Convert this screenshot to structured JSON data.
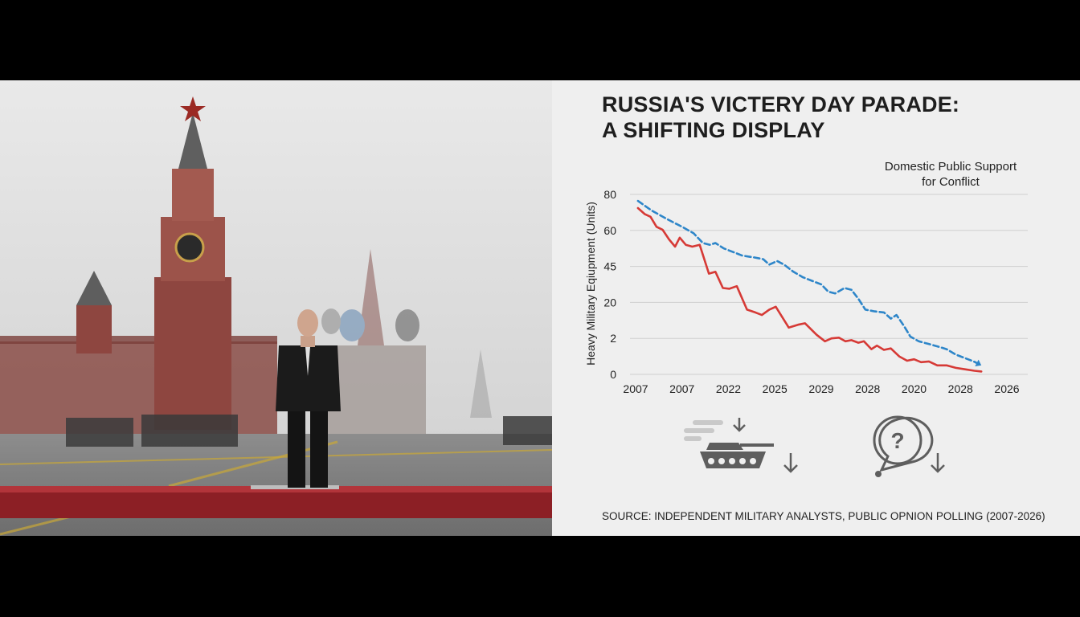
{
  "headline": {
    "line1": "RUSSIA'S VICTERY DAY PARADE:",
    "line2": "A SHIFTING DISPLAY"
  },
  "source": "SOURCE: INDEPENDENT MILITARY ANALYSTS, PUBLIC OPNION POLLING (2007-2026)",
  "icons": {
    "tank": "tank-icon",
    "question": "question-bubble-icon",
    "arrow": "arrow-down-icon"
  },
  "colors": {
    "red_series": "#d63a36",
    "blue_series": "#2e86c9",
    "panel_bg": "#efefef"
  },
  "chart_data": {
    "type": "line",
    "title": "",
    "legend_label": "Domestic Public Support for Conflict",
    "legend_lines": [
      "Domestic Public Support",
      "for Conflict"
    ],
    "ylabel": "Heavy Military Eqiupment (Units)",
    "xlabel": "",
    "x_tick_labels": [
      "2007",
      "2007",
      "2022",
      "2025",
      "2029",
      "2028",
      "2020",
      "2028",
      "2026"
    ],
    "y_tick_labels": [
      "80",
      "60",
      "45",
      "20",
      "2",
      "0"
    ],
    "ylim": [
      0,
      5
    ],
    "grid": true,
    "x_range": [
      0,
      8
    ],
    "series": [
      {
        "name": "",
        "color": "#d63a36",
        "style": "solid",
        "points": [
          [
            0.05,
            4.62
          ],
          [
            0.2,
            4.45
          ],
          [
            0.32,
            4.38
          ],
          [
            0.45,
            4.1
          ],
          [
            0.58,
            4.02
          ],
          [
            0.72,
            3.75
          ],
          [
            0.85,
            3.55
          ],
          [
            0.95,
            3.8
          ],
          [
            1.08,
            3.6
          ],
          [
            1.22,
            3.55
          ],
          [
            1.38,
            3.6
          ],
          [
            1.58,
            2.8
          ],
          [
            1.72,
            2.85
          ],
          [
            1.88,
            2.4
          ],
          [
            2.02,
            2.38
          ],
          [
            2.18,
            2.45
          ],
          [
            2.4,
            1.8
          ],
          [
            2.58,
            1.72
          ],
          [
            2.72,
            1.65
          ],
          [
            2.88,
            1.8
          ],
          [
            3.02,
            1.88
          ],
          [
            3.3,
            1.3
          ],
          [
            3.5,
            1.38
          ],
          [
            3.65,
            1.42
          ],
          [
            3.9,
            1.1
          ],
          [
            4.08,
            0.92
          ],
          [
            4.22,
            1.0
          ],
          [
            4.38,
            1.02
          ],
          [
            4.52,
            0.92
          ],
          [
            4.65,
            0.95
          ],
          [
            4.8,
            0.88
          ],
          [
            4.92,
            0.92
          ],
          [
            5.08,
            0.7
          ],
          [
            5.2,
            0.8
          ],
          [
            5.35,
            0.68
          ],
          [
            5.5,
            0.72
          ],
          [
            5.68,
            0.5
          ],
          [
            5.85,
            0.38
          ],
          [
            6.0,
            0.42
          ],
          [
            6.15,
            0.34
          ],
          [
            6.32,
            0.36
          ],
          [
            6.5,
            0.25
          ],
          [
            6.7,
            0.25
          ],
          [
            6.9,
            0.18
          ],
          [
            7.1,
            0.14
          ],
          [
            7.3,
            0.1
          ],
          [
            7.45,
            0.08
          ]
        ]
      },
      {
        "name": "Domestic Public Support for Conflict",
        "color": "#2e86c9",
        "style": "dashed",
        "points": [
          [
            0.05,
            4.82
          ],
          [
            0.35,
            4.55
          ],
          [
            0.7,
            4.3
          ],
          [
            1.0,
            4.1
          ],
          [
            1.25,
            3.92
          ],
          [
            1.45,
            3.65
          ],
          [
            1.6,
            3.6
          ],
          [
            1.72,
            3.65
          ],
          [
            1.9,
            3.5
          ],
          [
            2.1,
            3.4
          ],
          [
            2.3,
            3.3
          ],
          [
            2.55,
            3.25
          ],
          [
            2.75,
            3.2
          ],
          [
            2.88,
            3.05
          ],
          [
            3.05,
            3.15
          ],
          [
            3.2,
            3.05
          ],
          [
            3.4,
            2.85
          ],
          [
            3.6,
            2.7
          ],
          [
            3.8,
            2.6
          ],
          [
            4.0,
            2.5
          ],
          [
            4.15,
            2.3
          ],
          [
            4.3,
            2.25
          ],
          [
            4.5,
            2.4
          ],
          [
            4.65,
            2.35
          ],
          [
            4.8,
            2.1
          ],
          [
            4.95,
            1.8
          ],
          [
            5.15,
            1.75
          ],
          [
            5.35,
            1.72
          ],
          [
            5.5,
            1.55
          ],
          [
            5.62,
            1.65
          ],
          [
            5.78,
            1.35
          ],
          [
            5.92,
            1.05
          ],
          [
            6.1,
            0.92
          ],
          [
            6.3,
            0.85
          ],
          [
            6.5,
            0.78
          ],
          [
            6.7,
            0.7
          ],
          [
            6.9,
            0.55
          ],
          [
            7.1,
            0.45
          ],
          [
            7.3,
            0.35
          ],
          [
            7.45,
            0.25
          ]
        ]
      }
    ]
  }
}
